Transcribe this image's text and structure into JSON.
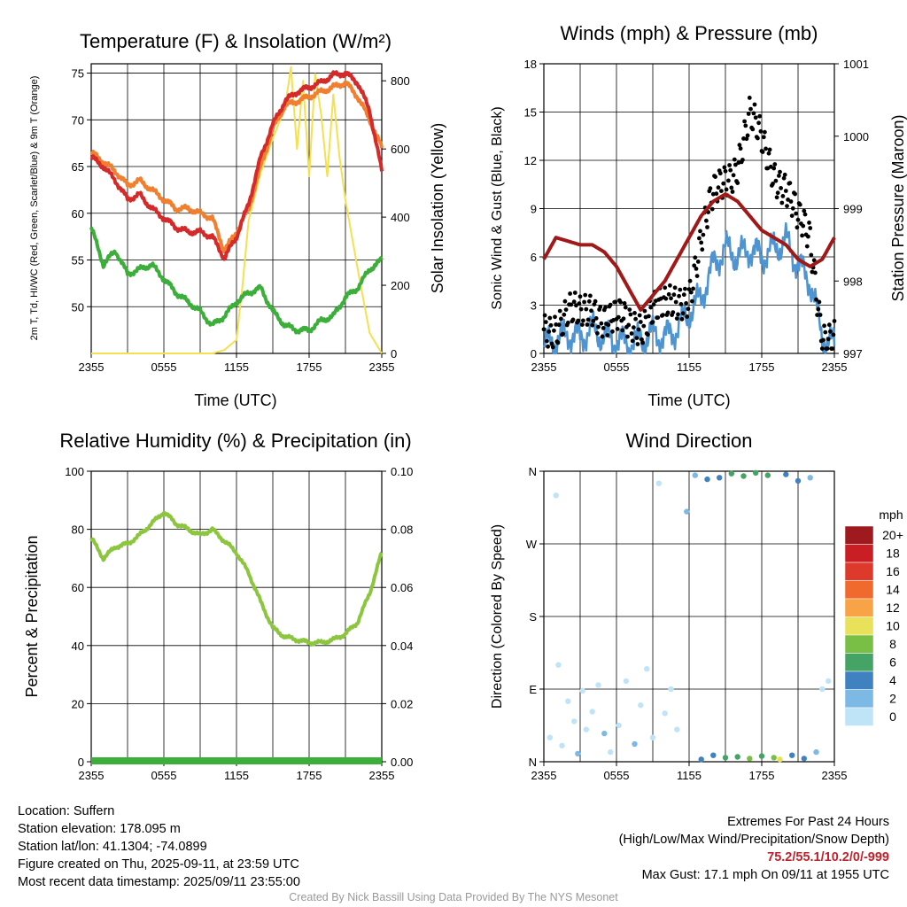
{
  "colors": {
    "temperature": "#d42a2a",
    "heat_index_wind_chill": "#b42020",
    "temp_9m": "#f08030",
    "dewpoint": "#3cae3a",
    "insolation": "#f4e050",
    "wind_speed": "#4d94d0",
    "wind_gust": "#000000",
    "pressure": "#a01818",
    "relative_humidity": "#8cc63f",
    "precipitation": "#3cae3a"
  },
  "chart_data": [
    {
      "type": "line",
      "title": "Temperature (F) & Insolation (W/m²)",
      "xlabel": "Time (UTC)",
      "ylabel": "2m T, Td, HI/WC (Red, Green, Scarlet/Blue) & 9m T (Orange)",
      "ylabel_right": "Solar Insolation (Yellow)",
      "x_ticks": [
        "2355",
        "0555",
        "1155",
        "1755",
        "2355"
      ],
      "x_hours": [
        0,
        24
      ],
      "ylim": [
        45,
        76
      ],
      "y_ticks": [
        50,
        55,
        60,
        65,
        70,
        75
      ],
      "ylim_right": [
        0,
        850
      ],
      "y_ticks_right": [
        0,
        200,
        400,
        600,
        800
      ],
      "grid": true,
      "series": [
        {
          "key": "temp_9m",
          "axis": "left",
          "x": [
            0,
            1,
            2,
            3,
            4,
            5,
            6,
            7,
            8,
            9,
            10,
            11,
            12,
            13,
            14,
            15,
            16,
            17,
            18,
            19,
            20,
            21,
            22,
            23,
            24
          ],
          "values": [
            66.5,
            65.5,
            64.5,
            63.0,
            63.5,
            62.5,
            61.5,
            60.5,
            60.5,
            60.0,
            59.5,
            56.0,
            58.0,
            60.5,
            65.0,
            69.0,
            71.5,
            72.0,
            72.5,
            73.0,
            73.5,
            74.0,
            72.5,
            70.0,
            67.0
          ]
        },
        {
          "key": "temperature",
          "axis": "left",
          "x": [
            0,
            1,
            2,
            3,
            4,
            5,
            6,
            7,
            8,
            9,
            10,
            11,
            12,
            13,
            14,
            15,
            16,
            17,
            18,
            19,
            20,
            21,
            22,
            23,
            24
          ],
          "values": [
            66.0,
            65.0,
            63.5,
            61.5,
            62.0,
            60.5,
            59.5,
            58.5,
            58.0,
            58.0,
            57.5,
            55.2,
            57.5,
            61.0,
            66.0,
            69.5,
            72.0,
            73.0,
            73.5,
            74.0,
            74.8,
            75.0,
            74.0,
            71.0,
            64.5
          ]
        },
        {
          "key": "dewpoint",
          "axis": "left",
          "x": [
            0,
            1,
            2,
            3,
            4,
            5,
            6,
            7,
            8,
            9,
            10,
            11,
            12,
            13,
            14,
            15,
            16,
            17,
            18,
            19,
            20,
            21,
            22,
            23,
            24
          ],
          "values": [
            58.5,
            54.5,
            56.0,
            53.5,
            54.0,
            54.5,
            53.0,
            51.5,
            50.5,
            49.5,
            48.0,
            49.0,
            50.5,
            51.5,
            52.0,
            49.5,
            48.0,
            47.5,
            47.5,
            48.5,
            49.0,
            51.0,
            52.0,
            54.0,
            55.0
          ]
        },
        {
          "key": "insolation",
          "axis": "right",
          "x": [
            0,
            6,
            10,
            11,
            12,
            12.5,
            13,
            14,
            15,
            16,
            16.5,
            17,
            17.5,
            18,
            18.5,
            19,
            19.5,
            20,
            20.5,
            21,
            22,
            23,
            24
          ],
          "values": [
            0,
            0,
            0,
            10,
            40,
            200,
            390,
            530,
            630,
            720,
            840,
            600,
            800,
            520,
            820,
            700,
            520,
            760,
            580,
            450,
            250,
            60,
            0
          ]
        }
      ]
    },
    {
      "type": "scatter",
      "title": "Winds (mph) & Pressure (mb)",
      "xlabel": "Time (UTC)",
      "ylabel": "Sonic Wind & Gust (Blue, Black)",
      "ylabel_right": "Station Pressure (Maroon)",
      "x_ticks": [
        "2355",
        "0555",
        "1155",
        "1755",
        "2355"
      ],
      "x_hours": [
        0,
        24
      ],
      "ylim": [
        0,
        18
      ],
      "y_ticks": [
        0,
        3,
        6,
        9,
        12,
        15,
        18
      ],
      "ylim_right": [
        997,
        1001
      ],
      "y_ticks_right": [
        997,
        998,
        999,
        1000,
        1001
      ],
      "grid": true,
      "series": [
        {
          "key": "wind_speed",
          "axis": "left",
          "x": [
            0,
            1,
            2,
            3,
            4,
            5,
            6,
            7,
            8,
            9,
            10,
            11,
            12,
            13,
            14,
            15,
            16,
            17,
            18,
            19,
            20,
            21,
            22,
            23,
            24
          ],
          "values": [
            0.5,
            0.8,
            1.2,
            1.0,
            1.5,
            1.0,
            0.8,
            0.6,
            0.8,
            1.2,
            1.0,
            1.5,
            2.5,
            3.5,
            5.5,
            6.5,
            6.0,
            6.5,
            6.0,
            6.5,
            7.0,
            5.5,
            4.5,
            1.0,
            0.5
          ]
        },
        {
          "key": "wind_gust",
          "axis": "left",
          "x": [
            0,
            1,
            2,
            3,
            4,
            5,
            6,
            7,
            8,
            9,
            10,
            11,
            12,
            13,
            14,
            15,
            16,
            17,
            18,
            19,
            20,
            21,
            22,
            23,
            24
          ],
          "values": [
            1.5,
            2.0,
            2.5,
            2.0,
            3.0,
            2.5,
            2.0,
            1.5,
            2.0,
            3.0,
            2.5,
            3.0,
            4.0,
            7.0,
            9.5,
            11.0,
            12.0,
            14.5,
            13.0,
            11.5,
            10.5,
            8.0,
            7.0,
            1.5,
            1.0
          ]
        },
        {
          "key": "pressure",
          "axis": "right",
          "x": [
            0,
            1,
            2,
            3,
            4,
            5,
            6,
            7,
            8,
            9,
            10,
            11,
            12,
            13,
            14,
            15,
            16,
            17,
            18,
            19,
            20,
            21,
            22,
            23,
            24
          ],
          "values": [
            998.3,
            998.6,
            998.55,
            998.5,
            998.5,
            998.4,
            998.2,
            997.9,
            997.6,
            997.8,
            998.0,
            998.3,
            998.6,
            998.9,
            999.1,
            999.2,
            999.1,
            998.9,
            998.7,
            998.6,
            998.5,
            998.3,
            998.2,
            998.3,
            998.6
          ]
        }
      ],
      "max_gust": 17.1
    },
    {
      "type": "line",
      "title": "Relative Humidity (%) & Precipitation (in)",
      "ylabel": "Percent & Precipitation",
      "x_ticks": [
        "2355",
        "0555",
        "1155",
        "1755",
        "2355"
      ],
      "x_hours": [
        0,
        24
      ],
      "ylim": [
        0,
        100
      ],
      "y_ticks": [
        0,
        20,
        40,
        60,
        80,
        100
      ],
      "ylim_right": [
        0,
        0.1
      ],
      "y_ticks_right": [
        "0.00",
        "0.02",
        "0.04",
        "0.06",
        "0.08",
        "0.10"
      ],
      "grid": true,
      "series": [
        {
          "key": "relative_humidity",
          "axis": "left",
          "x": [
            0,
            1,
            2,
            3,
            4,
            5,
            6,
            7,
            8,
            9,
            10,
            11,
            12,
            13,
            14,
            15,
            16,
            17,
            18,
            19,
            20,
            21,
            22,
            23,
            24
          ],
          "values": [
            77,
            70,
            74,
            75,
            78,
            82,
            86,
            82,
            80,
            78,
            80,
            76,
            72,
            65,
            55,
            46,
            43,
            42,
            41,
            41,
            42,
            44,
            48,
            58,
            72
          ]
        },
        {
          "key": "precipitation",
          "axis": "right",
          "x": [
            0,
            24
          ],
          "values": [
            0,
            0
          ]
        }
      ]
    },
    {
      "type": "scatter",
      "title": "Wind Direction",
      "ylabel": "Direction (Colored By Speed)",
      "x_ticks": [
        "2355",
        "0555",
        "1155",
        "1755",
        "2355"
      ],
      "x_hours": [
        0,
        24
      ],
      "y_ticks": [
        "N",
        "E",
        "S",
        "W",
        "N"
      ],
      "ylim_degrees": [
        0,
        360
      ],
      "grid": true,
      "legend": {
        "title": "mph",
        "labels": [
          "20+",
          "18",
          "16",
          "14",
          "12",
          "10",
          "8",
          "6",
          "4",
          "2",
          "0"
        ],
        "colors": [
          "#9e1a1f",
          "#c81e24",
          "#de3a2c",
          "#ef6a2c",
          "#f8a347",
          "#e9e15a",
          "#7abf45",
          "#45a365",
          "#4081bf",
          "#7db9e5",
          "#c0e4f7"
        ],
        "placement": "right"
      },
      "points": [
        {
          "hour": 0.5,
          "deg": 30,
          "mph": 1
        },
        {
          "hour": 1.0,
          "deg": 330,
          "mph": 1
        },
        {
          "hour": 1.2,
          "deg": 120,
          "mph": 1
        },
        {
          "hour": 1.5,
          "deg": 20,
          "mph": 1
        },
        {
          "hour": 2.0,
          "deg": 75,
          "mph": 1
        },
        {
          "hour": 2.5,
          "deg": 50,
          "mph": 1
        },
        {
          "hour": 2.8,
          "deg": 10,
          "mph": 2
        },
        {
          "hour": 3.2,
          "deg": 88,
          "mph": 1
        },
        {
          "hour": 3.5,
          "deg": 40,
          "mph": 1
        },
        {
          "hour": 4.0,
          "deg": 62,
          "mph": 1
        },
        {
          "hour": 4.5,
          "deg": 95,
          "mph": 1
        },
        {
          "hour": 5.0,
          "deg": 35,
          "mph": 2
        },
        {
          "hour": 5.5,
          "deg": 12,
          "mph": 1
        },
        {
          "hour": 6.2,
          "deg": 45,
          "mph": 1
        },
        {
          "hour": 6.8,
          "deg": 100,
          "mph": 1
        },
        {
          "hour": 7.5,
          "deg": 22,
          "mph": 2
        },
        {
          "hour": 8.0,
          "deg": 70,
          "mph": 1
        },
        {
          "hour": 8.5,
          "deg": 115,
          "mph": 1
        },
        {
          "hour": 9.0,
          "deg": 30,
          "mph": 1
        },
        {
          "hour": 9.5,
          "deg": 345,
          "mph": 1
        },
        {
          "hour": 10.0,
          "deg": 60,
          "mph": 1
        },
        {
          "hour": 10.5,
          "deg": 90,
          "mph": 1
        },
        {
          "hour": 11.0,
          "deg": 40,
          "mph": 1
        },
        {
          "hour": 11.8,
          "deg": 310,
          "mph": 2
        },
        {
          "hour": 12.5,
          "deg": 355,
          "mph": 3
        },
        {
          "hour": 13.0,
          "deg": 3,
          "mph": 4
        },
        {
          "hour": 13.5,
          "deg": 350,
          "mph": 4
        },
        {
          "hour": 14.0,
          "deg": 8,
          "mph": 5
        },
        {
          "hour": 14.5,
          "deg": 352,
          "mph": 4
        },
        {
          "hour": 15.0,
          "deg": 5,
          "mph": 6
        },
        {
          "hour": 15.5,
          "deg": 357,
          "mph": 7
        },
        {
          "hour": 16.0,
          "deg": 6,
          "mph": 6
        },
        {
          "hour": 16.5,
          "deg": 354,
          "mph": 7
        },
        {
          "hour": 17.0,
          "deg": 4,
          "mph": 8
        },
        {
          "hour": 17.5,
          "deg": 358,
          "mph": 6
        },
        {
          "hour": 18.0,
          "deg": 7,
          "mph": 7
        },
        {
          "hour": 18.5,
          "deg": 355,
          "mph": 7
        },
        {
          "hour": 19.0,
          "deg": 5,
          "mph": 9
        },
        {
          "hour": 19.5,
          "deg": 3,
          "mph": 10
        },
        {
          "hour": 20.0,
          "deg": 356,
          "mph": 5
        },
        {
          "hour": 20.5,
          "deg": 8,
          "mph": 4
        },
        {
          "hour": 21.0,
          "deg": 348,
          "mph": 4
        },
        {
          "hour": 21.5,
          "deg": 4,
          "mph": 4
        },
        {
          "hour": 22.0,
          "deg": 352,
          "mph": 3
        },
        {
          "hour": 22.5,
          "deg": 12,
          "mph": 2
        },
        {
          "hour": 23.0,
          "deg": 90,
          "mph": 1
        },
        {
          "hour": 23.5,
          "deg": 100,
          "mph": 1
        }
      ]
    }
  ],
  "info": {
    "location": "Location: Suffern",
    "elevation": "Station elevation: 178.095 m",
    "latlon": "Station lat/lon: 41.1304; -74.0899",
    "created": "Figure created on Thu, 2025-09-11, at 23:59 UTC",
    "recent": "Most recent data timestamp: 2025/09/11 23:55:00"
  },
  "extremes": {
    "title": "Extremes For Past 24 Hours",
    "subtitle": "(High/Low/Max Wind/Precipitation/Snow Depth)",
    "values": "75.2/55.1/10.2/0/-999",
    "max_gust": "Max Gust: 17.1 mph On 09/11 at 1955 UTC"
  },
  "credit": "Created By Nick Bassill Using Data Provided By The NYS Mesonet"
}
